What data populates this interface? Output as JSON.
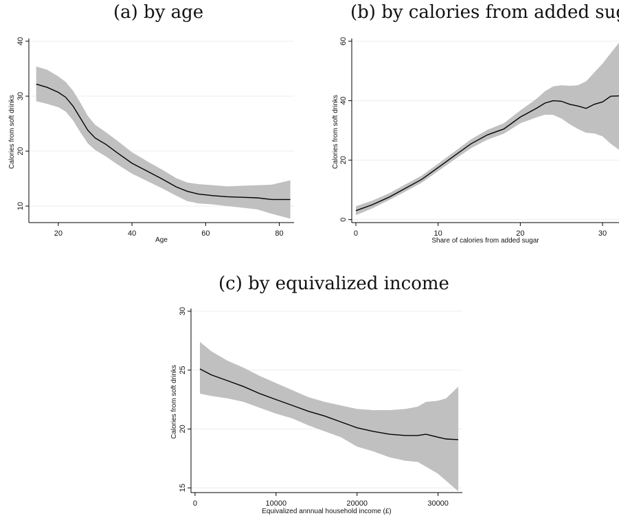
{
  "panel_titles": {
    "a": "(a) by age",
    "b": "(b) by calories from added sugar",
    "c": "(c) by equivalized income"
  },
  "chart_data": [
    {
      "type": "line",
      "title": "(a) by age",
      "xlabel": "Age",
      "ylabel": "Calories from soft drinks",
      "xlim": [
        12,
        84
      ],
      "ylim": [
        7,
        40
      ],
      "xticks": [
        20,
        40,
        60,
        80
      ],
      "yticks": [
        10,
        20,
        30,
        40
      ],
      "grid": "horizontal",
      "band_color": "#c0c0c0",
      "line_color": "#000000",
      "series": [
        {
          "x": [
            14,
            17,
            20,
            22,
            24,
            26,
            28,
            30,
            33,
            36,
            40,
            44,
            48,
            52,
            55,
            58,
            62,
            66,
            70,
            74,
            78,
            83
          ],
          "y": [
            32.2,
            31.6,
            30.7,
            29.8,
            28.2,
            26.0,
            23.8,
            22.4,
            21.2,
            19.7,
            17.8,
            16.4,
            15.0,
            13.5,
            12.7,
            12.2,
            11.9,
            11.7,
            11.6,
            11.5,
            11.2,
            11.2
          ],
          "lower": [
            29.1,
            28.6,
            28.0,
            27.2,
            25.6,
            23.4,
            21.4,
            20.2,
            19.0,
            17.6,
            15.9,
            14.6,
            13.3,
            11.9,
            10.9,
            10.5,
            10.3,
            10.0,
            9.7,
            9.4,
            8.6,
            7.7
          ],
          "upper": [
            35.4,
            34.8,
            33.6,
            32.6,
            31.0,
            28.8,
            26.4,
            24.8,
            23.4,
            21.9,
            19.8,
            18.2,
            16.7,
            15.1,
            14.3,
            14.0,
            13.8,
            13.6,
            13.7,
            13.8,
            13.9,
            14.7
          ]
        }
      ]
    },
    {
      "type": "line",
      "title": "(b) by calories from added sugar",
      "xlabel": "Share of calories from added sugar",
      "ylabel": "Calories from soft drinks",
      "xlim": [
        -0.5,
        32
      ],
      "ylim": [
        -1,
        60
      ],
      "xticks": [
        0,
        10,
        20,
        30
      ],
      "yticks": [
        0,
        20,
        40,
        60
      ],
      "grid": "horizontal",
      "band_color": "#c0c0c0",
      "line_color": "#000000",
      "series": [
        {
          "x": [
            0,
            2,
            4,
            6,
            8,
            10,
            12,
            14,
            16,
            18,
            20,
            22,
            23,
            24,
            25,
            26,
            27,
            28,
            29,
            30,
            31,
            32
          ],
          "y": [
            3,
            5,
            7.5,
            10.5,
            13.5,
            17.5,
            21.5,
            25.5,
            28.5,
            30.5,
            34.5,
            37.5,
            39.2,
            40.0,
            39.8,
            38.8,
            38.2,
            37.4,
            38.8,
            39.6,
            41.5,
            41.6
          ],
          "lower": [
            1.5,
            3.8,
            6.5,
            9.4,
            12.4,
            16.3,
            20.2,
            24.0,
            26.9,
            28.9,
            32.4,
            34.4,
            35.3,
            35.2,
            34.0,
            32.1,
            30.5,
            29.2,
            29.0,
            28.0,
            25.5,
            23.5
          ],
          "upper": [
            4.5,
            6.4,
            8.8,
            11.8,
            14.8,
            18.8,
            22.9,
            27.0,
            30.2,
            32.4,
            36.7,
            40.7,
            43.2,
            44.8,
            45.2,
            45.0,
            45.2,
            46.5,
            49.5,
            52.5,
            56.0,
            59.5
          ]
        }
      ]
    },
    {
      "type": "line",
      "title": "(c) by equivalized income",
      "xlabel": "Equivalized annnual household income (£)",
      "ylabel": "Calories from soft drinks",
      "xlim": [
        -500,
        33000
      ],
      "ylim": [
        14.6,
        30
      ],
      "xticks": [
        0,
        10000,
        20000,
        30000
      ],
      "yticks": [
        15,
        20,
        25,
        30
      ],
      "grid": "horizontal",
      "band_color": "#c0c0c0",
      "line_color": "#000000",
      "series": [
        {
          "x": [
            600,
            2000,
            4000,
            6000,
            8000,
            10000,
            12000,
            14000,
            16000,
            18000,
            20000,
            22000,
            24000,
            26000,
            27500,
            28500,
            30000,
            31000,
            32500
          ],
          "y": [
            25.1,
            24.6,
            24.1,
            23.6,
            23.0,
            22.5,
            22.0,
            21.5,
            21.1,
            20.6,
            20.1,
            19.8,
            19.55,
            19.45,
            19.45,
            19.55,
            19.3,
            19.15,
            19.1
          ],
          "lower": [
            23.0,
            22.8,
            22.6,
            22.3,
            21.8,
            21.3,
            20.9,
            20.3,
            19.8,
            19.3,
            18.5,
            18.1,
            17.6,
            17.3,
            17.2,
            16.8,
            16.2,
            15.6,
            14.7
          ],
          "upper": [
            27.4,
            26.6,
            25.8,
            25.2,
            24.5,
            23.9,
            23.3,
            22.7,
            22.3,
            22.0,
            21.7,
            21.6,
            21.6,
            21.7,
            21.9,
            22.3,
            22.4,
            22.6,
            23.6
          ]
        }
      ]
    }
  ]
}
